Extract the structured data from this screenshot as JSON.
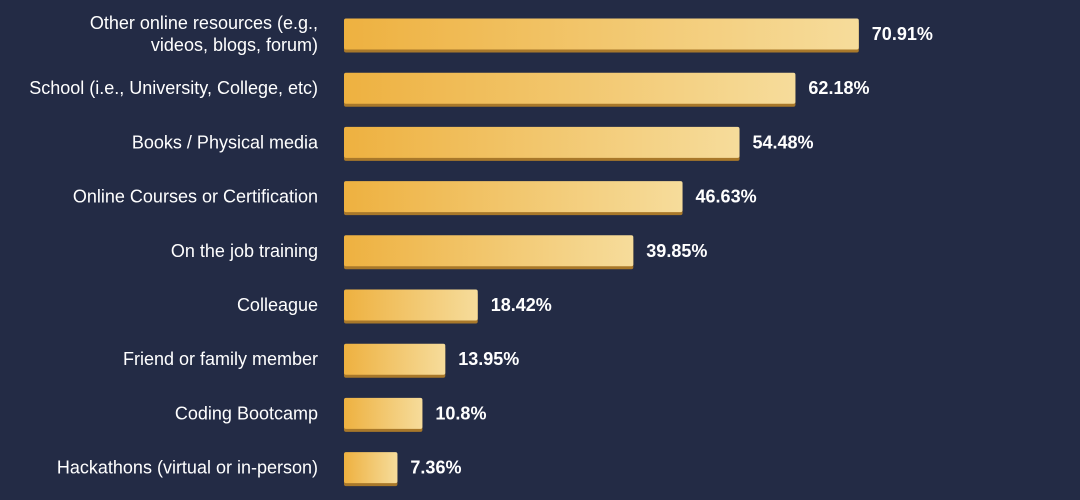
{
  "colors": {
    "background": "#232b45",
    "bar_start": "#eeb140",
    "bar_end": "#f6dc9b",
    "bar_shadow": "#a8782a",
    "text": "#ffffff"
  },
  "chart_data": {
    "type": "bar",
    "orientation": "horizontal",
    "value_suffix": "%",
    "xlim": [
      0,
      85
    ],
    "grid": false,
    "categories": [
      [
        "Other online resources (e.g.,",
        "videos, blogs, forum)"
      ],
      [
        "School (i.e., University, College, etc)"
      ],
      [
        "Books / Physical media"
      ],
      [
        "Online Courses or Certification"
      ],
      [
        "On the job training"
      ],
      [
        "Colleague"
      ],
      [
        "Friend or family member"
      ],
      [
        "Coding Bootcamp"
      ],
      [
        "Hackathons (virtual or in-person)"
      ]
    ],
    "values": [
      70.91,
      62.18,
      54.48,
      46.63,
      39.85,
      18.42,
      13.95,
      10.8,
      7.36
    ]
  }
}
